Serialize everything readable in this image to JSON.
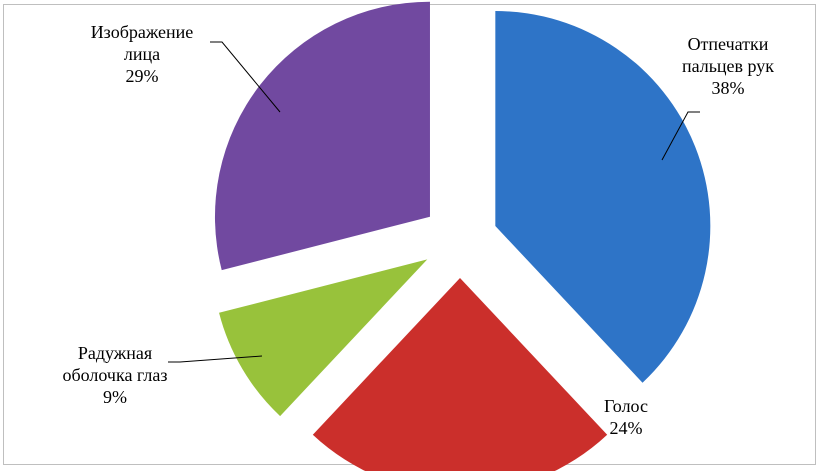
{
  "chart_data": {
    "type": "pie",
    "exploded": true,
    "slices": [
      {
        "name": "Отпечатки пальцев рук",
        "value": 38,
        "label_lines": [
          "Отпечатки",
          "пальцев  рук",
          "38%"
        ],
        "color": "#2e74c7"
      },
      {
        "name": "Голос",
        "value": 24,
        "label_lines": [
          "Голос",
          "24%"
        ],
        "color": "#cb2f2b"
      },
      {
        "name": "Радужная оболочка глаз",
        "value": 9,
        "label_lines": [
          "Радужная",
          "оболочка глаз",
          "9%"
        ],
        "color": "#98c23b"
      },
      {
        "name": "Изображение лица",
        "value": 29,
        "label_lines": [
          "Изображение",
          "лица",
          "29%"
        ],
        "color": "#7149a0"
      }
    ],
    "unit": "%",
    "legend": "none",
    "data_labels": "outside with leader lines"
  }
}
